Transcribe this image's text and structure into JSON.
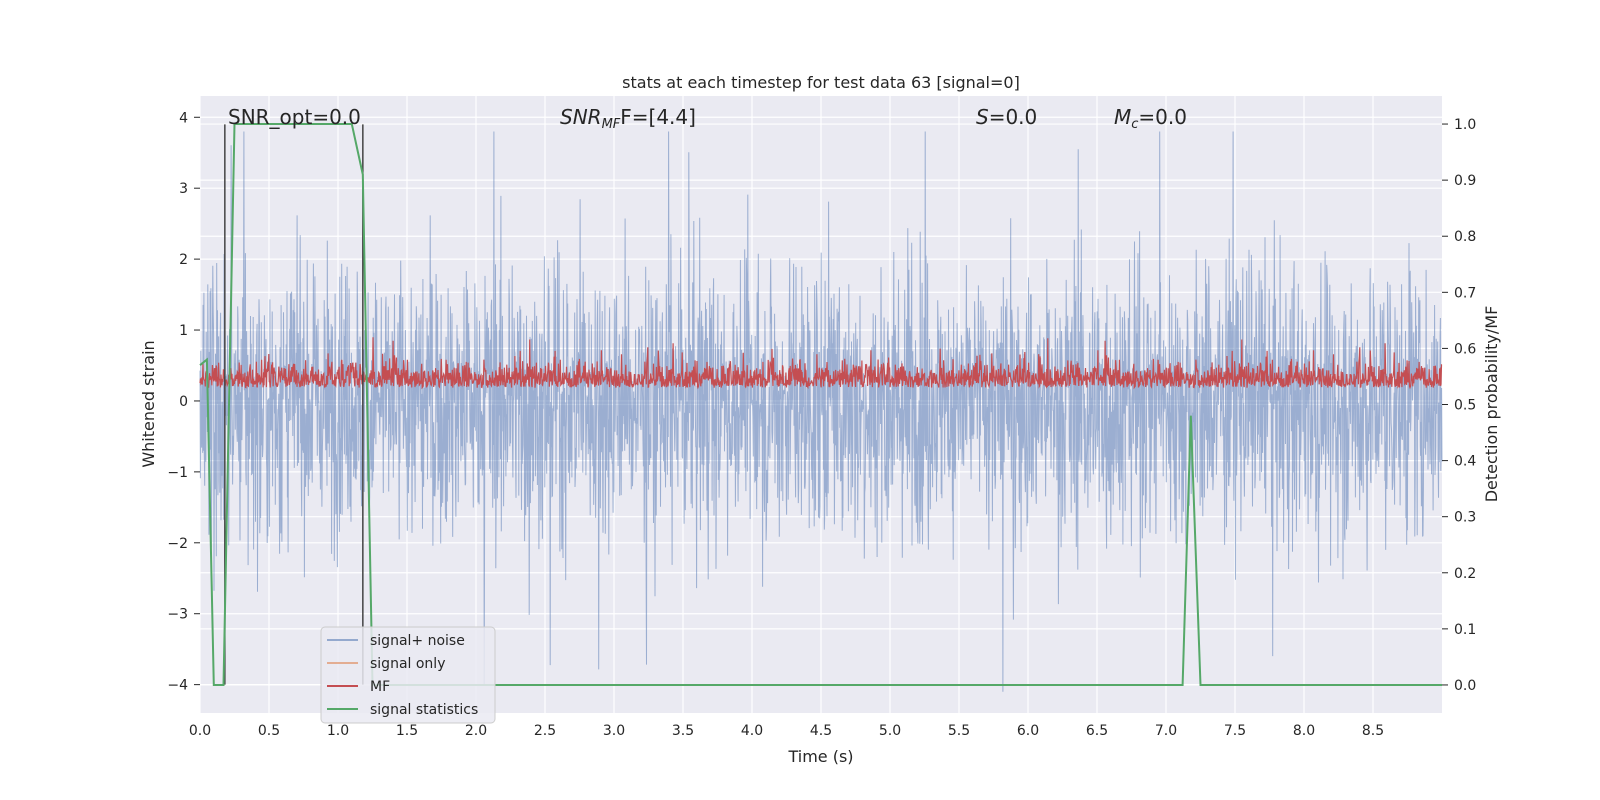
{
  "chart_data": {
    "type": "line",
    "title": "stats at each timestep for test data 63 [signal=0]",
    "xlabel": "Time (s)",
    "ylabel": "Whitened strain",
    "y2label": "Detection probability/MF",
    "xlim": [
      0,
      9
    ],
    "ylim": [
      -4.4,
      4.3
    ],
    "y2lim": [
      -0.05,
      1.05
    ],
    "grid": true,
    "legend_position": "lower-left",
    "x_ticks": [
      "0.0",
      "0.5",
      "1.0",
      "1.5",
      "2.0",
      "2.5",
      "3.0",
      "3.5",
      "4.0",
      "4.5",
      "5.0",
      "5.5",
      "6.0",
      "6.5",
      "7.0",
      "7.5",
      "8.0",
      "8.5"
    ],
    "y_ticks": [
      "−4",
      "−3",
      "−2",
      "−1",
      "0",
      "1",
      "2",
      "3",
      "4"
    ],
    "y2_ticks": [
      "0.0",
      "0.1",
      "0.2",
      "0.3",
      "0.4",
      "0.5",
      "0.6",
      "0.7",
      "0.8",
      "0.9",
      "1.0"
    ],
    "annotations": {
      "snr_opt": "SNR_opt=0.0",
      "snr_mf_prefix": "SNR",
      "snr_mf_sub": "MF",
      "snr_mf_suffix": "F=[4.4]",
      "s_var": "S",
      "s_val": "=0.0",
      "mc_var": "M",
      "mc_sub": "c",
      "mc_val": "=0.0"
    },
    "series": [
      {
        "name": "signal+ noise",
        "color": "#4c72b0",
        "axis": "left",
        "description_range": [
          -3.5,
          3.8
        ]
      },
      {
        "name": "signal only",
        "color": "#dd8452",
        "axis": "left",
        "values": []
      },
      {
        "name": "MF",
        "color": "#c44e52",
        "axis": "left",
        "description_range": [
          0,
          1
        ]
      },
      {
        "name": "signal statistics",
        "color": "#55a868",
        "axis": "right",
        "x": [
          0,
          0.05,
          0.1,
          0.12,
          0.17,
          0.25,
          0.3,
          1.1,
          1.18,
          1.25,
          7.12,
          7.18,
          7.25,
          9.0
        ],
        "values": [
          0.57,
          0.58,
          0.0,
          0.0,
          0.0,
          1.0,
          1.0,
          1.0,
          0.91,
          0.0,
          0.0,
          0.48,
          0.0,
          0.0
        ]
      }
    ],
    "vlines": [
      {
        "x": 0.18,
        "y_top": 3.9,
        "y_bottom": -4.0,
        "color": "#444444"
      },
      {
        "x": 1.18,
        "y_top": 3.9,
        "y_bottom": -4.0,
        "color": "#444444"
      }
    ]
  }
}
